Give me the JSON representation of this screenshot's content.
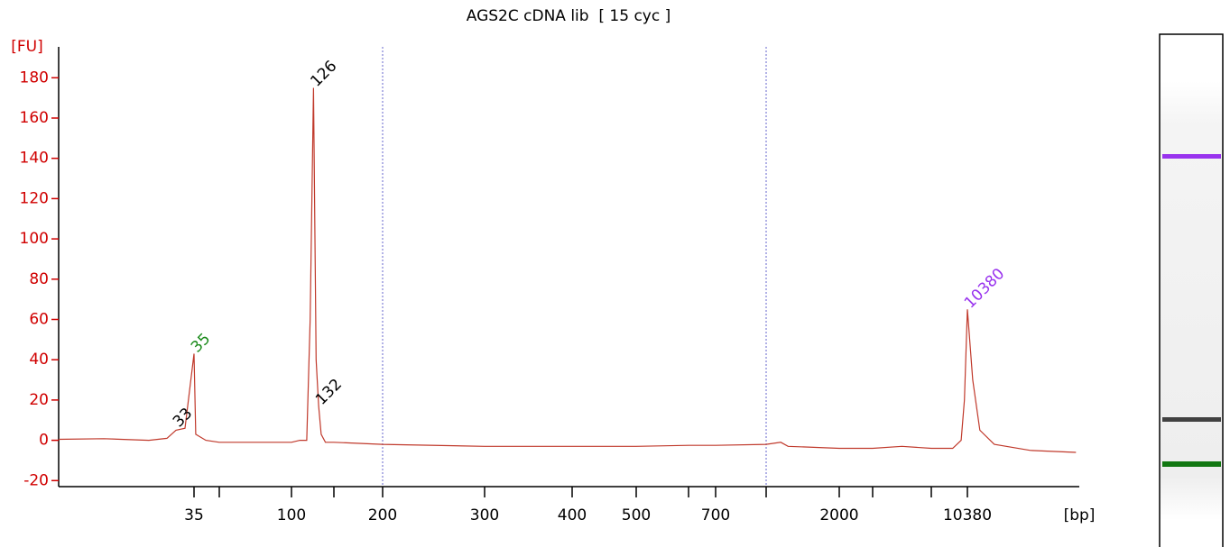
{
  "chart_data": {
    "type": "line",
    "title": "AGS2C cDNA lib  [ 15 cyc ]",
    "ylabel": "[FU]",
    "xlabel": "[bp]",
    "ylim": [
      -23,
      194
    ],
    "yticks": [
      -20,
      0,
      20,
      40,
      60,
      80,
      100,
      120,
      140,
      160,
      180
    ],
    "xlim": [
      20,
      15000
    ],
    "xticks": [
      35,
      {
        "value": 50,
        "label": null
      },
      100,
      {
        "value": 150,
        "label": null
      },
      200,
      300,
      400,
      500,
      {
        "value": 600,
        "label": null
      },
      700,
      {
        "value": 1000,
        "label": null
      },
      2000,
      {
        "value": 3000,
        "label": null
      },
      {
        "value": 7000,
        "label": null
      },
      10380
    ],
    "markers": [
      200,
      1000
    ],
    "trace": {
      "color": "#c0392b",
      "x": [
        20,
        25,
        30,
        32,
        33,
        34,
        35,
        36,
        38,
        42,
        50,
        70,
        100,
        110,
        118,
        122,
        126,
        129,
        132,
        135,
        140,
        150,
        200,
        300,
        400,
        500,
        600,
        700,
        1000,
        1200,
        1300,
        2000,
        3000,
        5000,
        7000,
        9000,
        9800,
        10100,
        10380,
        10600,
        10900,
        11500,
        13000,
        14900
      ],
      "values": [
        0.5,
        0.8,
        0,
        1,
        5,
        6,
        43,
        3,
        2,
        0,
        -1,
        -1,
        -1,
        0,
        0,
        60,
        175,
        40,
        17,
        3,
        -1,
        -1,
        -2,
        -3,
        -3,
        -3,
        -2.5,
        -2.5,
        -2,
        -1,
        -3,
        -4,
        -4,
        -3,
        -4,
        -4,
        0,
        20,
        65,
        30,
        5,
        -2,
        -5,
        -6
      ]
    },
    "peaks": [
      {
        "value": 33,
        "height": 6,
        "color": "#000000"
      },
      {
        "value": 35,
        "height": 43,
        "color": "#1a8a1a"
      },
      {
        "value": 126,
        "height": 175,
        "color": "#000000"
      },
      {
        "value": 132,
        "height": 17,
        "color": "#000000"
      },
      {
        "value": 10380,
        "height": 65,
        "color": "#9933ee"
      }
    ]
  }
}
